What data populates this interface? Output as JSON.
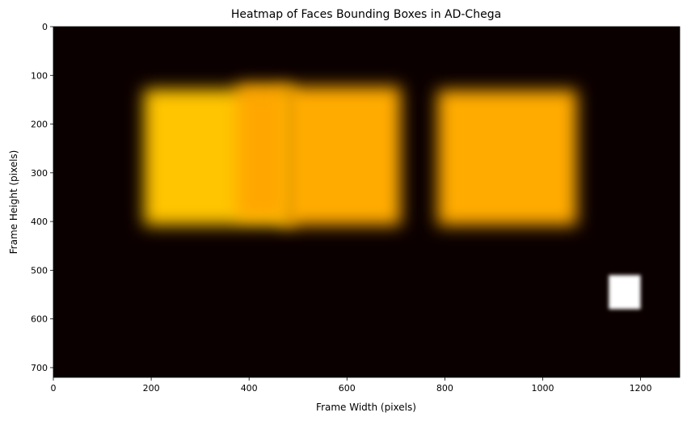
{
  "chart_data": {
    "type": "heatmap",
    "title": "Heatmap of Faces Bounding Boxes in AD-Chega",
    "xlabel": "Frame Width (pixels)",
    "ylabel": "Frame Height (pixels)",
    "xlim": [
      0,
      1280
    ],
    "ylim": [
      720,
      0
    ],
    "x_ticks": [
      0,
      200,
      400,
      600,
      800,
      1000,
      1200
    ],
    "y_ticks": [
      0,
      100,
      200,
      300,
      400,
      500,
      600,
      700
    ],
    "colormap": "hot",
    "background_color": "#0b0000",
    "grid": false,
    "legend": "none",
    "regions": [
      {
        "x0": 185,
        "x1": 490,
        "y0": 128,
        "y1": 408,
        "intensity": 0.66
      },
      {
        "x0": 375,
        "x1": 480,
        "y0": 118,
        "y1": 392,
        "intensity": 0.3
      },
      {
        "x0": 470,
        "x1": 710,
        "y0": 123,
        "y1": 408,
        "intensity": 0.62
      },
      {
        "x0": 785,
        "x1": 1070,
        "y0": 130,
        "y1": 408,
        "intensity": 0.62
      },
      {
        "x0": 1135,
        "x1": 1200,
        "y0": 510,
        "y1": 580,
        "intensity": 1.0
      }
    ]
  }
}
